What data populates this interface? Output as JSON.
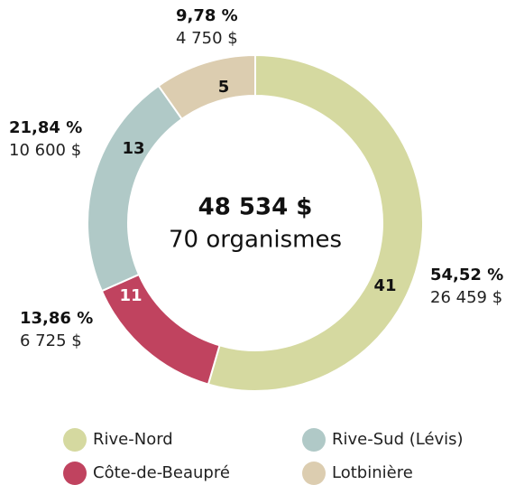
{
  "chart_data": {
    "type": "donut",
    "categories": [
      "Rive-Nord",
      "Côte-de-Beaupré",
      "Rive-Sud (Lévis)",
      "Lotbinière"
    ],
    "values": [
      54.52,
      13.86,
      21.84,
      9.78
    ],
    "value_labels": [
      "54,52 %",
      "13,86 %",
      "21,84 %",
      "9,78 %"
    ],
    "amounts": [
      26459,
      6725,
      10600,
      4750
    ],
    "amount_labels": [
      "26 459 $",
      "6 725 $",
      "10 600 $",
      "4 750 $"
    ],
    "counts": [
      41,
      11,
      13,
      5
    ],
    "colors": [
      "#d5d9a0",
      "#c0435f",
      "#b0c9c7",
      "#dccdb0"
    ],
    "total": {
      "value": 48534,
      "label": "48 534 $"
    },
    "center_label": "70 organismes"
  }
}
